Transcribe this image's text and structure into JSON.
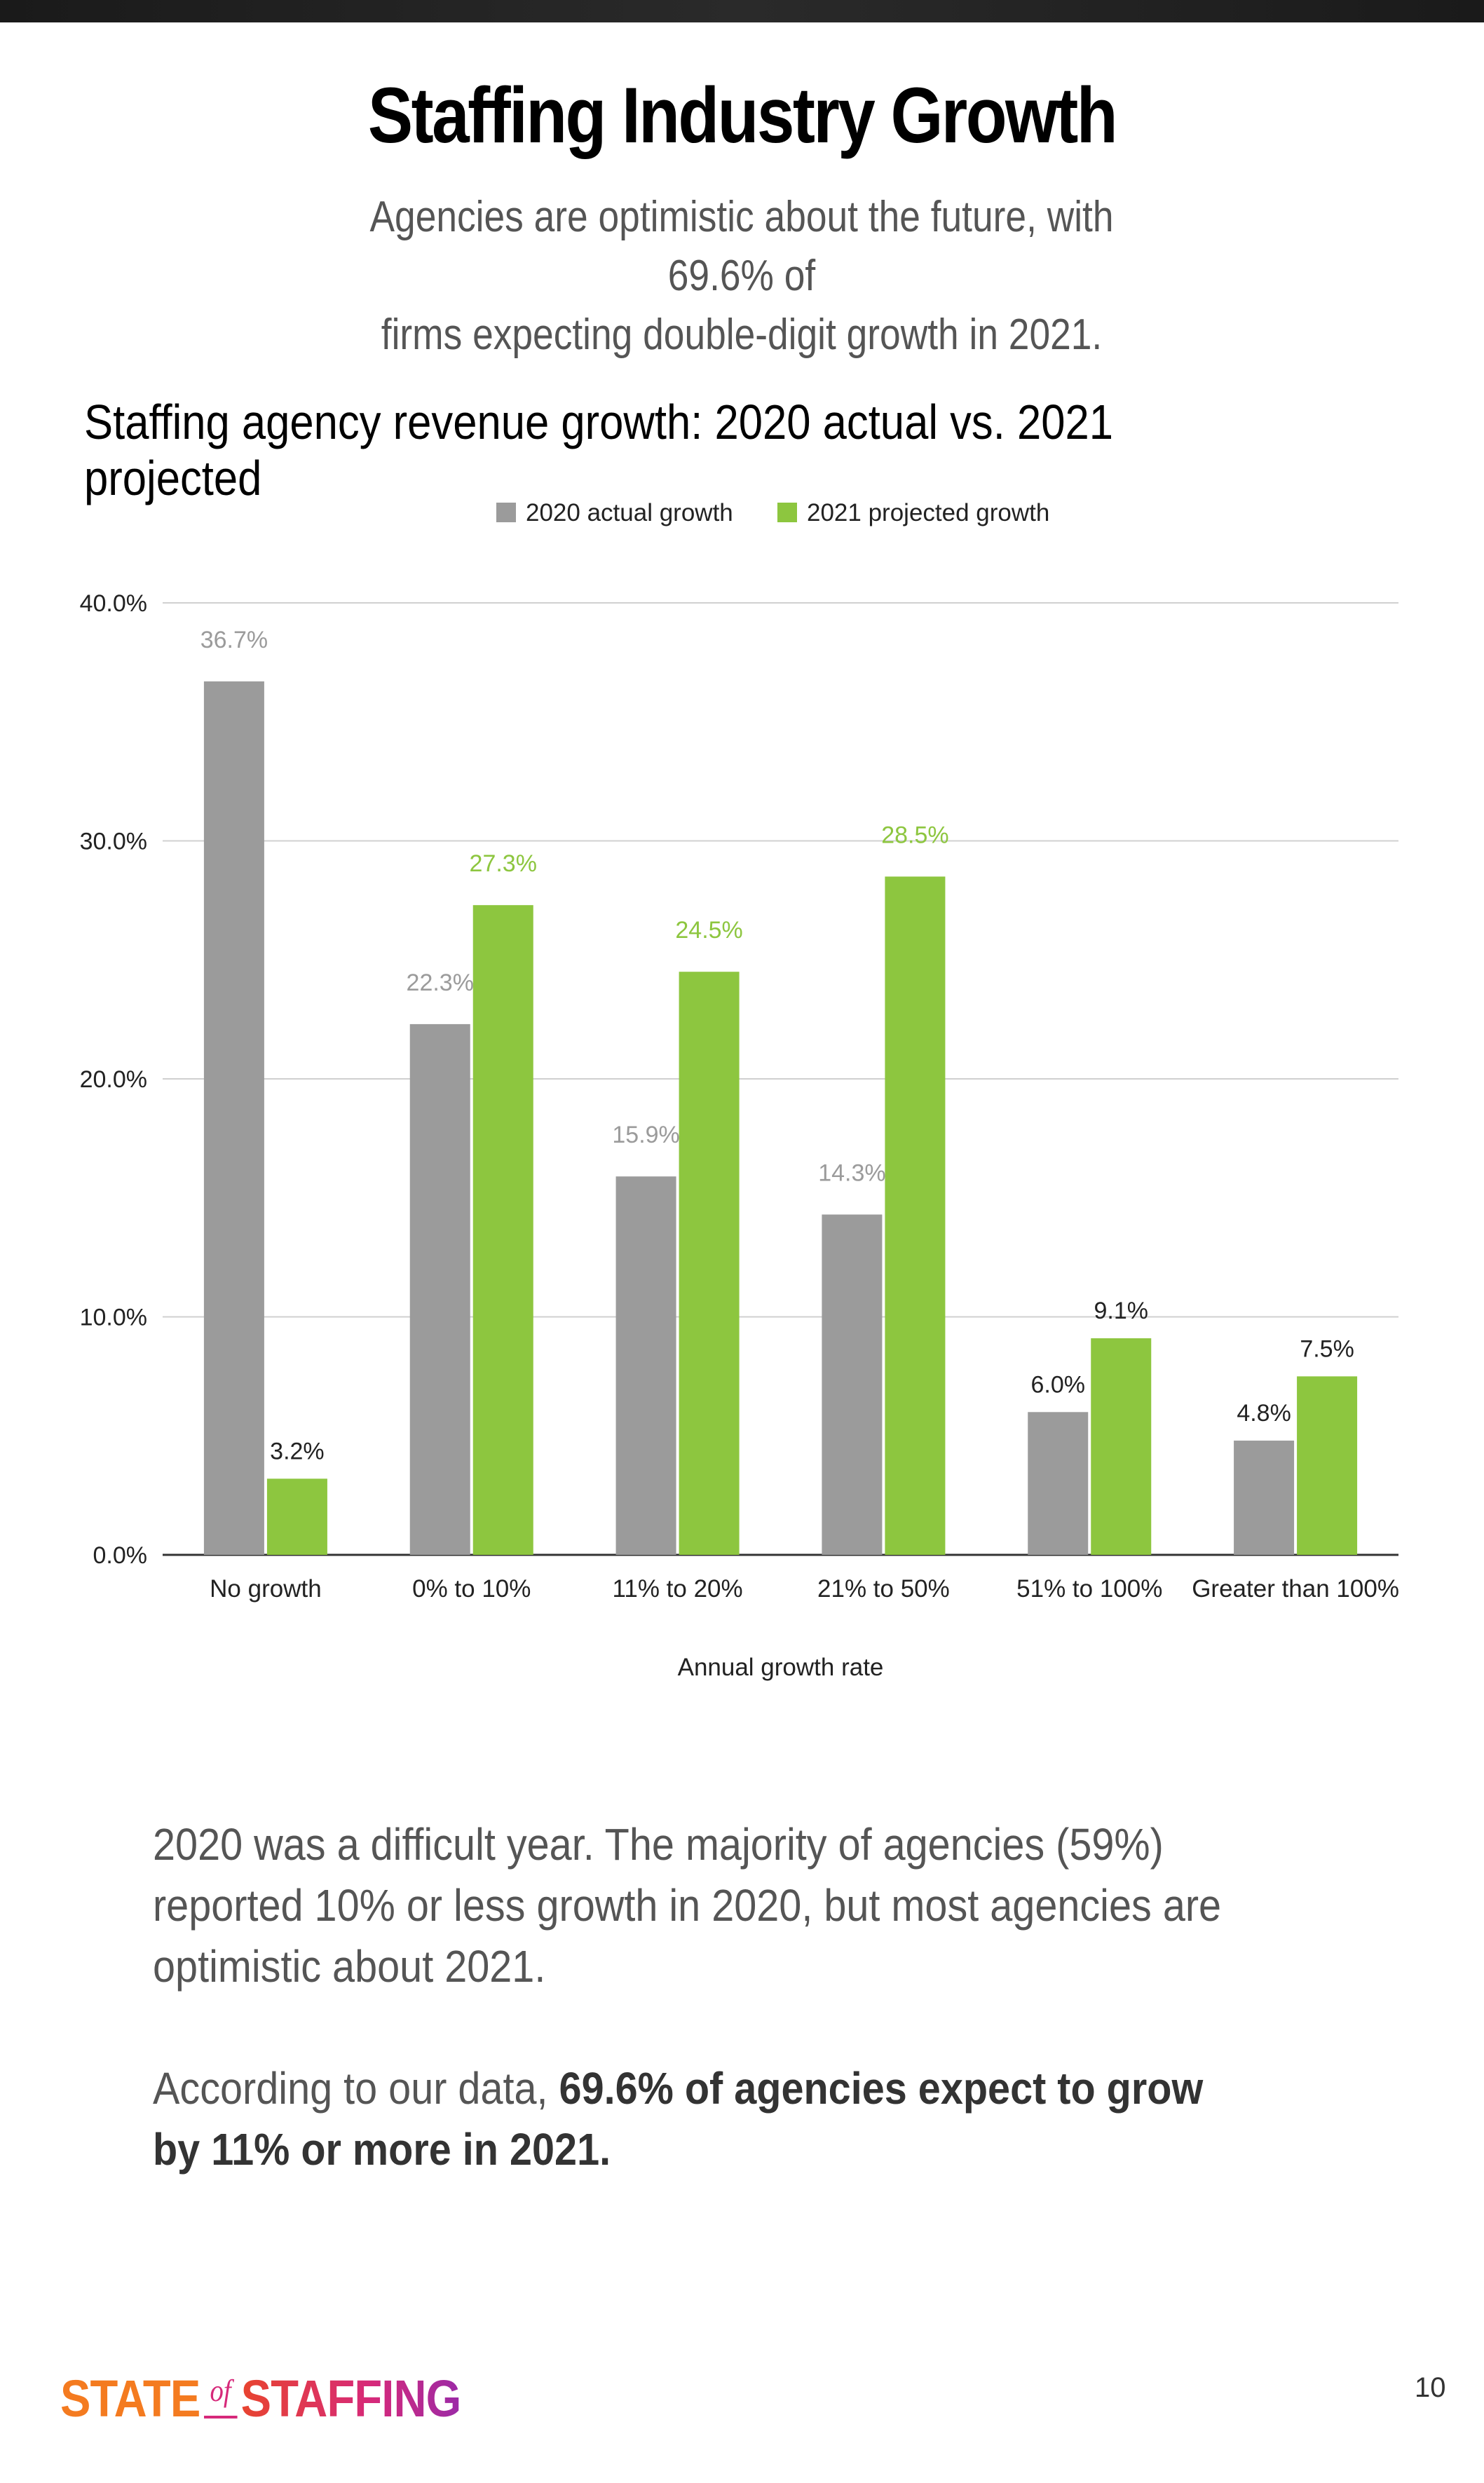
{
  "header": {
    "title": "Staffing Industry Growth",
    "subtitle_line1": "Agencies are optimistic about the future, with 69.6% of",
    "subtitle_line2": "firms expecting double-digit growth in 2021."
  },
  "chart_data": {
    "type": "bar",
    "title": "Staffing agency revenue growth: 2020 actual vs. 2021 projected",
    "xlabel": "Annual growth rate",
    "ylabel": "",
    "ylim": [
      0,
      40
    ],
    "yticks": [
      "0.0%",
      "10.0%",
      "20.0%",
      "30.0%",
      "40.0%"
    ],
    "categories": [
      "No growth",
      "0% to 10%",
      "11% to 20%",
      "21% to 50%",
      "51% to 100%",
      "Greater than 100%"
    ],
    "series": [
      {
        "name": "2020 actual growth",
        "color": "#9b9b9b",
        "label_color": "#9b9b9b",
        "values": [
          36.7,
          22.3,
          15.9,
          14.3,
          6.0,
          4.8
        ],
        "labels": [
          "36.7%",
          "22.3%",
          "15.9%",
          "14.3%",
          "6.0%",
          "4.8%"
        ]
      },
      {
        "name": "2021 projected growth",
        "color": "#8dc63f",
        "label_color": "#8dc63f",
        "values": [
          3.2,
          27.3,
          24.5,
          28.5,
          9.1,
          7.5
        ],
        "labels": [
          "3.2%",
          "27.3%",
          "24.5%",
          "28.5%",
          "9.1%",
          "7.5%"
        ]
      }
    ],
    "legend": "top-center",
    "grid": true
  },
  "body": {
    "paragraph1": "2020 was a difficult year. The majority of agencies (59%) reported 10% or less growth in 2020, but most agencies are optimistic about 2021.",
    "paragraph2_prefix": "According to our data, ",
    "paragraph2_bold": "69.6% of agencies expect to grow by 11% or more in 2021."
  },
  "footer": {
    "logo_state": "STATE",
    "logo_of": "of",
    "logo_staffing": "STAFFING",
    "page_number": "10"
  }
}
